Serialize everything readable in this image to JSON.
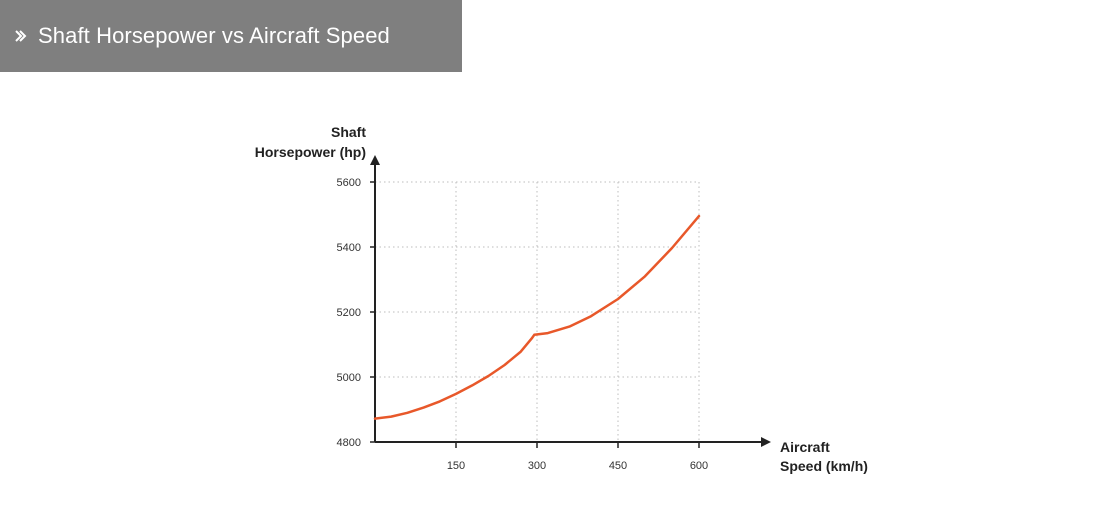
{
  "header": {
    "title": "Shaft Horsepower vs Aircraft Speed",
    "icon": "double-chevron-right-icon",
    "background_color": "#7f7f7f",
    "text_color": "#ffffff"
  },
  "chart_data": {
    "type": "line",
    "title": "Shaft Horsepower vs Aircraft Speed",
    "ylabel_lines": [
      "Shaft",
      "Horsepower (hp)"
    ],
    "xlabel_lines": [
      "Aircraft",
      "Speed (km/h)"
    ],
    "xlim": [
      0,
      600
    ],
    "ylim": [
      4800,
      5600
    ],
    "x_ticks": [
      150,
      300,
      450,
      600
    ],
    "y_ticks": [
      4800,
      5000,
      5200,
      5400,
      5600
    ],
    "grid": true,
    "grid_style": "dotted",
    "line_color": "#e8582a",
    "series": [
      {
        "x": [
          0,
          30,
          60,
          90,
          120,
          150,
          180,
          210,
          240,
          270,
          290,
          295,
          320,
          360,
          400,
          450,
          500,
          550,
          600
        ],
        "y": [
          4872,
          4878,
          4890,
          4906,
          4925,
          4948,
          4974,
          5003,
          5037,
          5078,
          5118,
          5130,
          5135,
          5155,
          5187,
          5240,
          5310,
          5397,
          5495
        ]
      }
    ]
  }
}
